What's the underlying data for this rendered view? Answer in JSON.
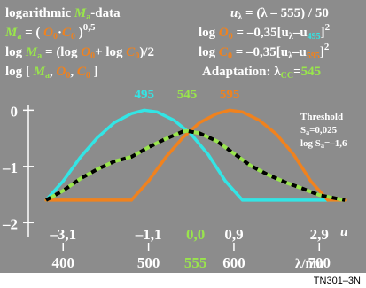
{
  "header": {
    "row1_left_prefix": "logarithmic ",
    "row1_left_var": "M",
    "row1_left_sub": "a",
    "row1_left_suffix": "-data",
    "row1_right_var": "u",
    "row1_right_sub": "λ",
    "row1_right_expr": " = (λ – 555) / 50",
    "row2_left_var": "M",
    "row2_left_sub": "a",
    "row2_left_eq": " = ( ",
    "row2_left_o": "O",
    "row2_left_o_sub": "0",
    "row2_left_dot": "·",
    "row2_left_c": "C",
    "row2_left_c_sub": "0",
    "row2_left_close": " )",
    "row2_left_exp": "0,5",
    "row2_right_log": "log ",
    "row2_right_o": "O",
    "row2_right_o_sub": "0",
    "row2_right_eq": " = –0,35[u",
    "row2_right_u_sub": "λ",
    "row2_right_minus": "–u",
    "row2_right_ref": "495",
    "row2_right_close": "]",
    "row2_right_exp": "2",
    "row3_left_log": "log ",
    "row3_left_m": "M",
    "row3_left_m_sub": "a",
    "row3_left_eq": " = (log ",
    "row3_left_o": "O",
    "row3_left_o_sub": "0",
    "row3_left_plus": "+ log ",
    "row3_left_c": "C",
    "row3_left_c_sub": "0",
    "row3_left_end": ")/2",
    "row3_right_log": "log ",
    "row3_right_c": "C",
    "row3_right_c_sub": "0",
    "row3_right_eq": " = –0,35[u",
    "row3_right_u_sub": "λ",
    "row3_right_minus": "–u",
    "row3_right_ref": "595",
    "row3_right_close": "]",
    "row3_right_exp": "2",
    "row4_left_open": "log [ ",
    "row4_left_m": "M",
    "row4_left_m_sub": "a",
    "row4_left_comma1": ", ",
    "row4_left_o": "O",
    "row4_left_o_sub": "0",
    "row4_left_comma2": ", ",
    "row4_left_c": "C",
    "row4_left_c_sub": "0",
    "row4_left_close": " ]",
    "row4_right_label": "Adaptation: λ",
    "row4_right_sub": "CC",
    "row4_right_eq": "=",
    "row4_right_value": "545"
  },
  "threshold": {
    "title": "Threshold",
    "line1": "S",
    "line1_sub": "a",
    "line1_val": "=0,025",
    "line2": "log S",
    "line2_sub": "a",
    "line2_val": "=–1,6"
  },
  "code": "TN301–3N",
  "colors": {
    "background": "#8c8c8c",
    "cyan": "#33e5e5",
    "green": "#99e54c",
    "orange": "#f0821e",
    "dashes": "#000000",
    "white": "#ffffff"
  },
  "chart_data": {
    "type": "line",
    "xlabel": "λ/nm",
    "ylabel": "",
    "xlim": [
      380,
      735
    ],
    "ylim": [
      -2.2,
      0.1
    ],
    "x_ticks": [
      400,
      500,
      600,
      700
    ],
    "y_ticks": [
      0,
      -1,
      -2
    ],
    "y_tick_labels": [
      "0",
      "–1",
      "–2"
    ],
    "x_tick_labels": [
      "400",
      "500",
      "600",
      "700"
    ],
    "green_x_label": "555",
    "u_axis": {
      "label": "u",
      "ticks": [
        {
          "label": "–3,1",
          "lambda": 400,
          "color": "white"
        },
        {
          "label": "–1,1",
          "lambda": 500,
          "color": "white"
        },
        {
          "label": "0,0",
          "lambda": 555,
          "color": "green"
        },
        {
          "label": "0,9",
          "lambda": 600,
          "color": "white"
        },
        {
          "label": "2,9",
          "lambda": 700,
          "color": "white"
        }
      ]
    },
    "top_labels": [
      {
        "label": "495",
        "lambda": 495,
        "color": "cyan"
      },
      {
        "label": "545",
        "lambda": 545,
        "color": "green"
      },
      {
        "label": "595",
        "lambda": 595,
        "color": "orange"
      }
    ],
    "clip_min": -1.6,
    "series": [
      {
        "key": "log_O0",
        "color": "cyan",
        "peak": 495,
        "x": [
          380,
          400,
          420,
          440,
          460,
          480,
          495,
          510,
          530,
          550,
          570,
          590,
          610,
          625,
          650,
          680,
          710,
          730
        ],
        "y": [
          -1.6,
          -1.26,
          -0.84,
          -0.49,
          -0.22,
          -0.06,
          0.0,
          -0.03,
          -0.18,
          -0.43,
          -0.79,
          -1.26,
          -1.6,
          -1.6,
          -1.6,
          -1.6,
          -1.6,
          -1.6
        ]
      },
      {
        "key": "log_C0",
        "color": "orange",
        "peak": 595,
        "x": [
          380,
          400,
          450,
          470,
          480,
          500,
          520,
          540,
          560,
          580,
          595,
          610,
          630,
          650,
          670,
          690,
          710,
          730
        ],
        "y": [
          -1.6,
          -1.6,
          -1.6,
          -1.6,
          -1.6,
          -1.26,
          -0.84,
          -0.49,
          -0.22,
          -0.06,
          0.0,
          -0.03,
          -0.18,
          -0.43,
          -0.79,
          -1.26,
          -1.6,
          -1.6
        ]
      },
      {
        "key": "log_Ma",
        "color": "dashed",
        "x": [
          380,
          400,
          420,
          440,
          460,
          480,
          500,
          520,
          540,
          545,
          560,
          580,
          600,
          620,
          640,
          660,
          680,
          700,
          730
        ],
        "y": [
          -1.6,
          -1.43,
          -1.22,
          -1.05,
          -0.91,
          -0.83,
          -0.66,
          -0.51,
          -0.38,
          -0.37,
          -0.41,
          -0.55,
          -0.77,
          -0.99,
          -1.15,
          -1.28,
          -1.39,
          -1.51,
          -1.6
        ]
      }
    ]
  }
}
